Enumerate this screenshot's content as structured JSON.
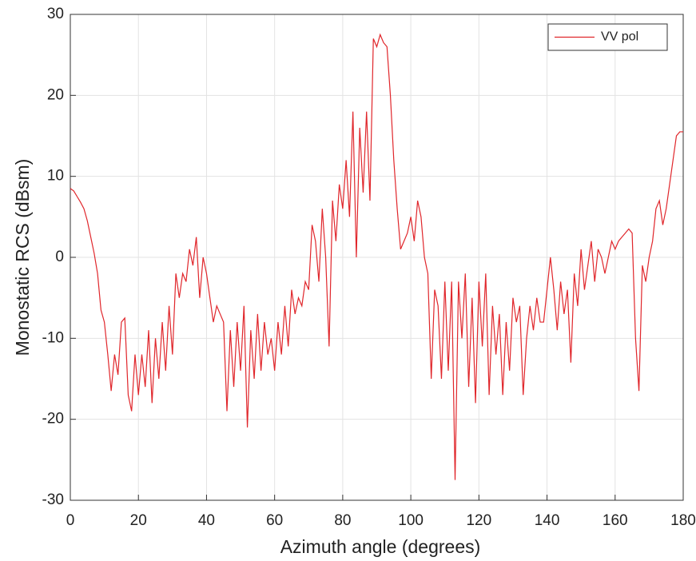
{
  "chart_data": {
    "type": "line",
    "xlabel": "Azimuth angle (degrees)",
    "ylabel": "Monostatic RCS (dBsm)",
    "xlim": [
      0,
      180
    ],
    "ylim": [
      -30,
      30
    ],
    "xticks": [
      0,
      20,
      40,
      60,
      80,
      100,
      120,
      140,
      160,
      180
    ],
    "yticks": [
      -30,
      -20,
      -10,
      0,
      10,
      20,
      30
    ],
    "grid": true,
    "legend": "upper right",
    "x": [
      0,
      1,
      2,
      3,
      4,
      5,
      6,
      7,
      8,
      9,
      10,
      11,
      12,
      13,
      14,
      15,
      16,
      17,
      18,
      19,
      20,
      21,
      22,
      23,
      24,
      25,
      26,
      27,
      28,
      29,
      30,
      31,
      32,
      33,
      34,
      35,
      36,
      37,
      38,
      39,
      40,
      41,
      42,
      43,
      44,
      45,
      46,
      47,
      48,
      49,
      50,
      51,
      52,
      53,
      54,
      55,
      56,
      57,
      58,
      59,
      60,
      61,
      62,
      63,
      64,
      65,
      66,
      67,
      68,
      69,
      70,
      71,
      72,
      73,
      74,
      75,
      76,
      77,
      78,
      79,
      80,
      81,
      82,
      83,
      84,
      85,
      86,
      87,
      88,
      89,
      90,
      91,
      92,
      93,
      94,
      95,
      96,
      97,
      98,
      99,
      100,
      101,
      102,
      103,
      104,
      105,
      106,
      107,
      108,
      109,
      110,
      111,
      112,
      113,
      114,
      115,
      116,
      117,
      118,
      119,
      120,
      121,
      122,
      123,
      124,
      125,
      126,
      127,
      128,
      129,
      130,
      131,
      132,
      133,
      134,
      135,
      136,
      137,
      138,
      139,
      140,
      141,
      142,
      143,
      144,
      145,
      146,
      147,
      148,
      149,
      150,
      151,
      152,
      153,
      154,
      155,
      156,
      157,
      158,
      159,
      160,
      161,
      162,
      163,
      164,
      165,
      166,
      167,
      168,
      169,
      170,
      171,
      172,
      173,
      174,
      175,
      176,
      177,
      178,
      179,
      180
    ],
    "series": [
      {
        "name": "VV pol",
        "color": "#e0262b",
        "values": [
          8.5,
          8.2,
          7.5,
          6.8,
          6,
          4.5,
          2.5,
          0.5,
          -2,
          -6.5,
          -8,
          -12,
          -16.5,
          -12,
          -14.5,
          -8,
          -7.5,
          -17,
          -19,
          -12,
          -17,
          -12,
          -16,
          -9,
          -18,
          -10,
          -15,
          -8,
          -14,
          -6,
          -12,
          -2,
          -5,
          -2,
          -3,
          1,
          -1,
          2.5,
          -5,
          0,
          -2,
          -5,
          -8,
          -6,
          -7,
          -8,
          -19,
          -9,
          -16,
          -8,
          -14,
          -6,
          -21,
          -9,
          -15,
          -7,
          -14,
          -8,
          -12,
          -10,
          -14,
          -8,
          -12,
          -6,
          -11,
          -4,
          -7,
          -5,
          -6,
          -3,
          -4,
          4,
          2,
          -3,
          6,
          0,
          -11,
          7,
          2,
          9,
          6,
          12,
          5,
          18,
          0,
          16,
          8,
          18,
          7,
          27,
          26,
          27.5,
          26.5,
          26,
          20,
          12,
          6,
          1,
          2,
          3,
          5,
          2,
          7,
          5,
          0,
          -2,
          -15,
          -4,
          -6,
          -15,
          -3,
          -14,
          -3,
          -27.5,
          -3,
          -10,
          -2,
          -16,
          -5,
          -18,
          -3,
          -11,
          -2,
          -17,
          -6,
          -12,
          -7,
          -17,
          -8,
          -14,
          -5,
          -8,
          -6,
          -17,
          -10,
          -6,
          -9,
          -5,
          -8,
          -8,
          -4,
          0,
          -4,
          -9,
          -3,
          -7,
          -4,
          -13,
          -2,
          -6,
          1,
          -4,
          -1,
          2,
          -3,
          1,
          0,
          -2,
          0,
          2,
          1,
          2,
          2.5,
          3,
          3.5,
          3,
          -10,
          -16.5,
          -1,
          -3,
          0,
          2,
          6,
          7,
          4,
          6,
          9,
          12,
          15,
          15.5,
          15.5
        ]
      }
    ]
  }
}
